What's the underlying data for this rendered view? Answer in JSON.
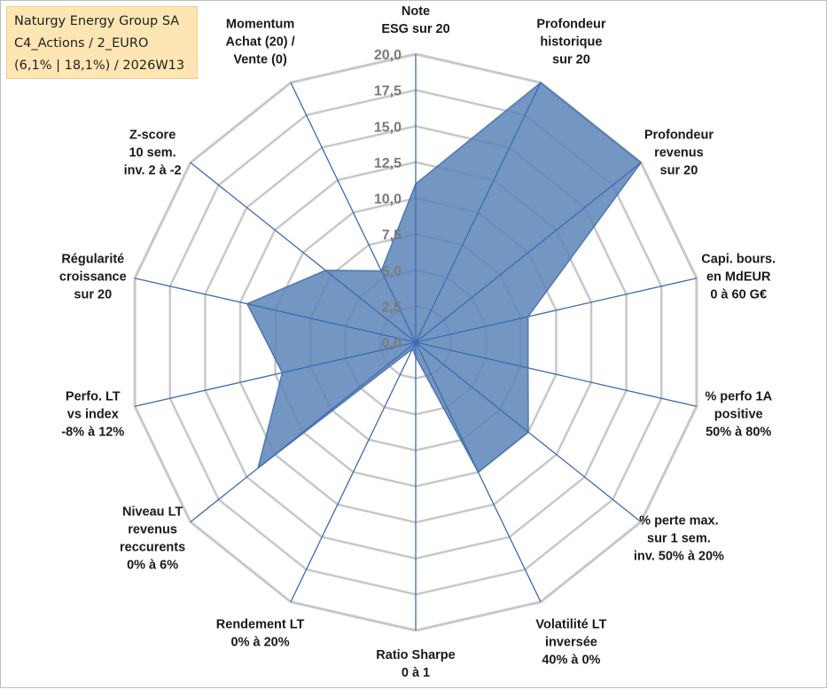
{
  "info_box": {
    "line1": "Naturgy Energy Group SA",
    "line2": "C4_Actions / 2_EURO",
    "line3": "(6,1% | 18,1%) / 2026W13"
  },
  "colors": {
    "fill": "#5b84b8",
    "stroke": "#4d78b0",
    "spoke": "#3d6bb3",
    "grid": "#c8c8c8",
    "tick_label": "#7a7a7a",
    "info_box_bg": "#fde6b4"
  },
  "chart_data": {
    "type": "radar",
    "r_min": 0,
    "r_max": 20,
    "r_step": 2.5,
    "tick_labels": [
      "0,0",
      "2,5",
      "5,0",
      "7,5",
      "10,0",
      "12,5",
      "15,0",
      "17,5",
      "20,0"
    ],
    "axes": [
      {
        "label": [
          "Note",
          "ESG sur 20"
        ],
        "value": 11.0
      },
      {
        "label": [
          "Profondeur",
          "historique",
          "sur 20"
        ],
        "value": 20.0
      },
      {
        "label": [
          "Profondeur",
          "revenus",
          "sur 20"
        ],
        "value": 20.0
      },
      {
        "label": [
          "Capi. bours.",
          "en MdEUR",
          "0 à 60 G€"
        ],
        "value": 8.0
      },
      {
        "label": [
          "% perfo 1A",
          "positive",
          "50% à 80%"
        ],
        "value": 8.0
      },
      {
        "label": [
          "% perte max.",
          "sur 1 sem.",
          "inv. 50% à 20%"
        ],
        "value": 10.0
      },
      {
        "label": [
          "Volatilité LT",
          "inversée",
          "40% à 0%"
        ],
        "value": 10.0
      },
      {
        "label": [
          "Ratio Sharpe",
          "0 à 1"
        ],
        "value": 1.0
      },
      {
        "label": [
          "Rendement LT",
          "0% à 20%"
        ],
        "value": 0.5
      },
      {
        "label": [
          "Niveau LT",
          "revenus",
          "reccurents",
          "0% à 6%"
        ],
        "value": 14.0
      },
      {
        "label": [
          "Perfo. LT",
          "vs index",
          "-8% à 12%"
        ],
        "value": 9.5
      },
      {
        "label": [
          "Régularité",
          "croissance",
          "sur 20"
        ],
        "value": 12.0
      },
      {
        "label": [
          "Z-score",
          "10 sem.",
          "inv. 2 à -2"
        ],
        "value": 8.0
      },
      {
        "label": [
          "Momentum",
          "Achat (20) /",
          "Vente (0)"
        ],
        "value": 5.5
      }
    ]
  }
}
